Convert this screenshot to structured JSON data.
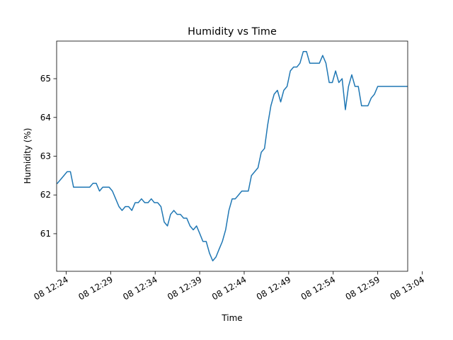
{
  "chart_data": {
    "type": "line",
    "title": "Humidity vs Time",
    "xlabel": "Time",
    "ylabel": "Humidity (%)",
    "xlim": [
      "08 12:22:56",
      "13:02:22"
    ],
    "ylim": [
      60.03,
      65.97
    ],
    "grid": false,
    "legend": "none",
    "x_ticks": [
      "08 12:24",
      "08 12:29",
      "08 12:34",
      "08 12:39",
      "08 12:44",
      "08 12:49",
      "08 12:54",
      "08 12:59",
      "08 13:04"
    ],
    "y_ticks": [
      "61",
      "62",
      "63",
      "64",
      "65"
    ],
    "series": [
      {
        "color": "#1f77b4",
        "x": [
          "12:23:01",
          "12:23:23",
          "12:23:45",
          "12:24:07",
          "12:24:29",
          "12:24:50",
          "12:25:12",
          "12:25:34",
          "12:25:56",
          "12:26:18",
          "12:26:39",
          "12:27:01",
          "12:27:23",
          "12:27:45",
          "12:28:07",
          "12:28:28",
          "12:28:50",
          "12:29:12",
          "12:29:34",
          "12:29:56",
          "12:30:17",
          "12:30:39",
          "12:31:01",
          "12:31:23",
          "12:31:45",
          "12:32:06",
          "12:32:28",
          "12:32:50",
          "12:33:12",
          "12:33:34",
          "12:33:55",
          "12:34:17",
          "12:34:39",
          "12:35:01",
          "12:35:23",
          "12:35:44",
          "12:36:06",
          "12:36:28",
          "12:36:50",
          "12:37:12",
          "12:37:33",
          "12:37:55",
          "12:38:17",
          "12:38:39",
          "12:39:01",
          "12:39:22",
          "12:39:44",
          "12:40:06",
          "12:40:28",
          "12:40:50",
          "12:41:11",
          "12:41:33",
          "12:41:55",
          "12:42:17",
          "12:42:39",
          "12:43:00",
          "12:43:22",
          "12:43:44",
          "12:44:06",
          "12:44:28",
          "12:44:49",
          "12:45:11",
          "12:45:33",
          "12:45:55",
          "12:46:17",
          "12:46:38",
          "12:47:00",
          "12:47:22",
          "12:47:44",
          "12:48:06",
          "12:48:27",
          "12:48:49",
          "12:49:11",
          "12:49:33",
          "12:49:55",
          "12:50:16",
          "12:50:38",
          "12:51:00",
          "12:51:22",
          "12:51:44",
          "12:52:05",
          "12:52:27",
          "12:52:49",
          "12:53:11",
          "12:53:33",
          "12:53:54",
          "12:54:16",
          "12:54:38",
          "12:55:00",
          "12:55:22",
          "12:55:43",
          "12:56:05",
          "12:56:27",
          "12:56:49",
          "12:57:11",
          "12:57:32",
          "12:57:54",
          "12:58:16",
          "12:58:38",
          "12:59:00",
          "12:59:21",
          "12:59:43",
          "13:00:05",
          "13:00:27",
          "13:00:49",
          "13:01:10",
          "13:01:32",
          "13:01:54",
          "13:02:16"
        ],
        "values": [
          62.3,
          62.4,
          62.5,
          62.6,
          62.6,
          62.2,
          62.2,
          62.2,
          62.2,
          62.2,
          62.2,
          62.3,
          62.3,
          62.1,
          62.2,
          62.2,
          62.2,
          62.1,
          61.9,
          61.7,
          61.6,
          61.7,
          61.7,
          61.6,
          61.8,
          61.8,
          61.9,
          61.8,
          61.8,
          61.9,
          61.8,
          61.8,
          61.7,
          61.3,
          61.2,
          61.5,
          61.6,
          61.5,
          61.5,
          61.4,
          61.4,
          61.2,
          61.1,
          61.2,
          61.0,
          60.8,
          60.8,
          60.5,
          60.3,
          60.4,
          60.6,
          60.8,
          61.1,
          61.6,
          61.9,
          61.9,
          62.0,
          62.1,
          62.1,
          62.1,
          62.5,
          62.6,
          62.7,
          63.1,
          63.2,
          63.8,
          64.3,
          64.6,
          64.7,
          64.4,
          64.7,
          64.8,
          65.2,
          65.3,
          65.3,
          65.4,
          65.7,
          65.7,
          65.4,
          65.4,
          65.4,
          65.4,
          65.6,
          65.4,
          64.9,
          64.9,
          65.2,
          64.9,
          65.0,
          64.2,
          64.8,
          65.1,
          64.8,
          64.8,
          64.3,
          64.3,
          64.3,
          64.5,
          64.6,
          64.8,
          64.8,
          64.8,
          64.8,
          64.8,
          64.8,
          64.8,
          64.8,
          64.8,
          64.8
        ]
      }
    ]
  }
}
